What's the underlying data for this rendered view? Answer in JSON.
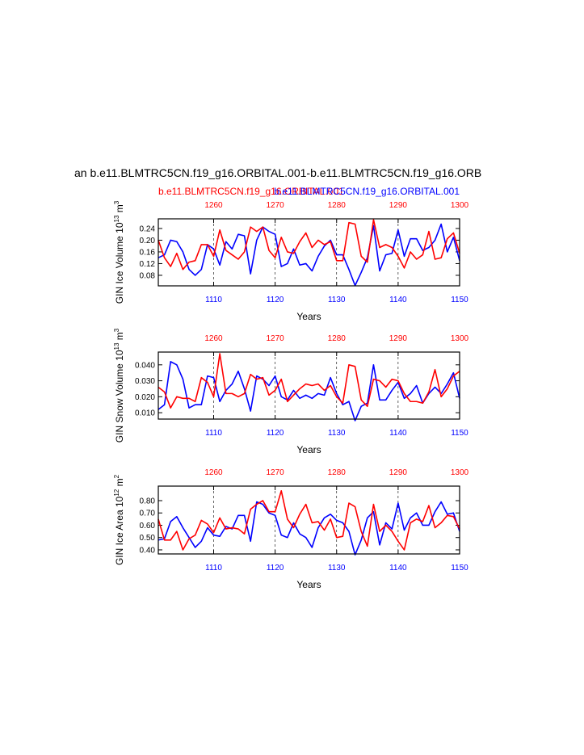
{
  "chart_data": [
    {
      "type": "line",
      "title": "an b.e11.BLMTRC5CN.f19_g16.ORBITAL.001-b.e11.BLMTRC5CN.f19_g16.ORB",
      "subtitle_left": "b.e11.BLMTRC5CN.f19_g16.ORBITAL.001",
      "subtitle_right": "b.e11.BLMTRC5CN.f19_g16.ORBITAL.001",
      "subtitle_left_color": "#ff0000",
      "subtitle_right_color": "#0000ff",
      "ylabel": [
        "GIN Ice Volume 10",
        "13",
        " m",
        "3"
      ],
      "xlabel": "Years",
      "xlim": [
        1101,
        1150
      ],
      "xticks": [
        1110,
        1120,
        1130,
        1140,
        1150
      ],
      "x2lim": [
        1251,
        1300
      ],
      "x2ticks": [
        1260,
        1270,
        1280,
        1290,
        1300
      ],
      "ylim": [
        0.044,
        0.273
      ],
      "yticks": [
        {
          "value": 0.08,
          "label": "0.08"
        },
        {
          "value": 0.12,
          "label": "0.12"
        },
        {
          "value": 0.16,
          "label": "0.16"
        },
        {
          "value": 0.2,
          "label": "0.20"
        },
        {
          "value": 0.24,
          "label": "0.24"
        }
      ],
      "grid": "x-dashed",
      "series": [
        {
          "color": "#0000ff",
          "xaxis": "bottom",
          "x": [
            1101,
            1102,
            1103,
            1104,
            1105,
            1106,
            1107,
            1108,
            1109,
            1110,
            1111,
            1112,
            1113,
            1114,
            1115,
            1116,
            1117,
            1118,
            1119,
            1120,
            1121,
            1122,
            1123,
            1124,
            1125,
            1126,
            1127,
            1128,
            1129,
            1130,
            1131,
            1132,
            1133,
            1134,
            1135,
            1136,
            1137,
            1138,
            1139,
            1140,
            1141,
            1142,
            1143,
            1144,
            1145,
            1146,
            1147,
            1148,
            1149,
            1150
          ],
          "values": [
            0.14,
            0.15,
            0.2,
            0.195,
            0.16,
            0.1,
            0.08,
            0.1,
            0.185,
            0.17,
            0.115,
            0.195,
            0.17,
            0.22,
            0.215,
            0.085,
            0.2,
            0.245,
            0.23,
            0.22,
            0.11,
            0.12,
            0.17,
            0.115,
            0.12,
            0.095,
            0.145,
            0.18,
            0.2,
            0.15,
            0.15,
            0.1,
            0.045,
            0.09,
            0.14,
            0.25,
            0.095,
            0.15,
            0.155,
            0.235,
            0.145,
            0.205,
            0.205,
            0.165,
            0.175,
            0.2,
            0.255,
            0.16,
            0.21,
            0.13
          ]
        },
        {
          "color": "#ff0000",
          "xaxis": "top",
          "x": [
            1251,
            1252,
            1253,
            1254,
            1255,
            1256,
            1257,
            1258,
            1259,
            1260,
            1261,
            1262,
            1263,
            1264,
            1265,
            1266,
            1267,
            1268,
            1269,
            1270,
            1271,
            1272,
            1273,
            1274,
            1275,
            1276,
            1277,
            1278,
            1279,
            1280,
            1281,
            1282,
            1283,
            1284,
            1285,
            1286,
            1287,
            1288,
            1289,
            1290,
            1291,
            1292,
            1293,
            1294,
            1295,
            1296,
            1297,
            1298,
            1299,
            1300
          ],
          "values": [
            0.2,
            0.14,
            0.11,
            0.155,
            0.1,
            0.125,
            0.13,
            0.185,
            0.185,
            0.145,
            0.235,
            0.165,
            0.15,
            0.135,
            0.16,
            0.245,
            0.23,
            0.245,
            0.165,
            0.14,
            0.21,
            0.16,
            0.155,
            0.195,
            0.225,
            0.175,
            0.2,
            0.185,
            0.195,
            0.13,
            0.13,
            0.26,
            0.255,
            0.145,
            0.125,
            0.27,
            0.175,
            0.185,
            0.175,
            0.145,
            0.105,
            0.16,
            0.135,
            0.15,
            0.23,
            0.135,
            0.14,
            0.205,
            0.225,
            0.155
          ]
        }
      ]
    },
    {
      "type": "line",
      "ylabel": [
        "GIN Snow Volume 10",
        "13",
        " m",
        "3"
      ],
      "xlabel": "Years",
      "xlim": [
        1101,
        1150
      ],
      "xticks": [
        1110,
        1120,
        1130,
        1140,
        1150
      ],
      "x2lim": [
        1251,
        1300
      ],
      "x2ticks": [
        1260,
        1270,
        1280,
        1290,
        1300
      ],
      "ylim": [
        0.006,
        0.048
      ],
      "yticks": [
        {
          "value": 0.01,
          "label": "0.010"
        },
        {
          "value": 0.02,
          "label": "0.020"
        },
        {
          "value": 0.03,
          "label": "0.030"
        },
        {
          "value": 0.04,
          "label": "0.040"
        }
      ],
      "grid": "x-dashed",
      "series": [
        {
          "color": "#0000ff",
          "xaxis": "bottom",
          "x": [
            1101,
            1102,
            1103,
            1104,
            1105,
            1106,
            1107,
            1108,
            1109,
            1110,
            1111,
            1112,
            1113,
            1114,
            1115,
            1116,
            1117,
            1118,
            1119,
            1120,
            1121,
            1122,
            1123,
            1124,
            1125,
            1126,
            1127,
            1128,
            1129,
            1130,
            1131,
            1132,
            1133,
            1134,
            1135,
            1136,
            1137,
            1138,
            1139,
            1140,
            1141,
            1142,
            1143,
            1144,
            1145,
            1146,
            1147,
            1148,
            1149,
            1150
          ],
          "values": [
            0.012,
            0.015,
            0.042,
            0.04,
            0.031,
            0.013,
            0.015,
            0.015,
            0.033,
            0.032,
            0.017,
            0.024,
            0.028,
            0.036,
            0.025,
            0.011,
            0.033,
            0.031,
            0.027,
            0.033,
            0.02,
            0.018,
            0.024,
            0.019,
            0.021,
            0.019,
            0.022,
            0.021,
            0.032,
            0.022,
            0.015,
            0.017,
            0.005,
            0.014,
            0.016,
            0.04,
            0.018,
            0.018,
            0.024,
            0.029,
            0.019,
            0.022,
            0.027,
            0.016,
            0.022,
            0.026,
            0.022,
            0.028,
            0.035,
            0.019
          ]
        },
        {
          "color": "#ff0000",
          "xaxis": "top",
          "x": [
            1251,
            1252,
            1253,
            1254,
            1255,
            1256,
            1257,
            1258,
            1259,
            1260,
            1261,
            1262,
            1263,
            1264,
            1265,
            1266,
            1267,
            1268,
            1269,
            1270,
            1271,
            1272,
            1273,
            1274,
            1275,
            1276,
            1277,
            1278,
            1279,
            1280,
            1281,
            1282,
            1283,
            1284,
            1285,
            1286,
            1287,
            1288,
            1289,
            1290,
            1291,
            1292,
            1293,
            1294,
            1295,
            1296,
            1297,
            1298,
            1299,
            1300
          ],
          "values": [
            0.026,
            0.023,
            0.013,
            0.02,
            0.019,
            0.019,
            0.017,
            0.032,
            0.029,
            0.02,
            0.047,
            0.022,
            0.022,
            0.02,
            0.022,
            0.034,
            0.031,
            0.032,
            0.021,
            0.024,
            0.031,
            0.017,
            0.021,
            0.025,
            0.028,
            0.027,
            0.028,
            0.024,
            0.027,
            0.02,
            0.016,
            0.04,
            0.039,
            0.018,
            0.014,
            0.031,
            0.03,
            0.026,
            0.031,
            0.03,
            0.022,
            0.017,
            0.017,
            0.016,
            0.023,
            0.037,
            0.02,
            0.025,
            0.033,
            0.036
          ]
        }
      ]
    },
    {
      "type": "line",
      "ylabel": [
        "GIN Ice Area 10",
        "12",
        " m",
        "2"
      ],
      "xlabel": "Years",
      "xlim": [
        1101,
        1150
      ],
      "xticks": [
        1110,
        1120,
        1130,
        1140,
        1150
      ],
      "x2lim": [
        1251,
        1300
      ],
      "x2ticks": [
        1260,
        1270,
        1280,
        1290,
        1300
      ],
      "ylim": [
        0.367,
        0.918
      ],
      "yticks": [
        {
          "value": 0.4,
          "label": "0.40"
        },
        {
          "value": 0.5,
          "label": "0.50"
        },
        {
          "value": 0.6,
          "label": "0.60"
        },
        {
          "value": 0.7,
          "label": "0.70"
        },
        {
          "value": 0.8,
          "label": "0.80"
        }
      ],
      "grid": "x-dashed",
      "series": [
        {
          "color": "#0000ff",
          "xaxis": "bottom",
          "x": [
            1101,
            1102,
            1103,
            1104,
            1105,
            1106,
            1107,
            1108,
            1109,
            1110,
            1111,
            1112,
            1113,
            1114,
            1115,
            1116,
            1117,
            1118,
            1119,
            1120,
            1121,
            1122,
            1123,
            1124,
            1125,
            1126,
            1127,
            1128,
            1129,
            1130,
            1131,
            1132,
            1133,
            1134,
            1135,
            1136,
            1137,
            1138,
            1139,
            1140,
            1141,
            1142,
            1143,
            1144,
            1145,
            1146,
            1147,
            1148,
            1149,
            1150
          ],
          "values": [
            0.48,
            0.49,
            0.63,
            0.67,
            0.58,
            0.5,
            0.42,
            0.47,
            0.58,
            0.52,
            0.51,
            0.59,
            0.57,
            0.68,
            0.68,
            0.47,
            0.79,
            0.77,
            0.7,
            0.68,
            0.52,
            0.5,
            0.62,
            0.53,
            0.5,
            0.42,
            0.58,
            0.66,
            0.69,
            0.64,
            0.62,
            0.55,
            0.36,
            0.48,
            0.66,
            0.71,
            0.44,
            0.62,
            0.57,
            0.78,
            0.56,
            0.66,
            0.7,
            0.6,
            0.6,
            0.71,
            0.79,
            0.69,
            0.7,
            0.55
          ]
        },
        {
          "color": "#ff0000",
          "xaxis": "top",
          "x": [
            1251,
            1252,
            1253,
            1254,
            1255,
            1256,
            1257,
            1258,
            1259,
            1260,
            1261,
            1262,
            1263,
            1264,
            1265,
            1266,
            1267,
            1268,
            1269,
            1270,
            1271,
            1272,
            1273,
            1274,
            1275,
            1276,
            1277,
            1278,
            1279,
            1280,
            1281,
            1282,
            1283,
            1284,
            1285,
            1286,
            1287,
            1288,
            1289,
            1290,
            1291,
            1292,
            1293,
            1294,
            1295,
            1296,
            1297,
            1298,
            1299,
            1300
          ],
          "values": [
            0.65,
            0.48,
            0.48,
            0.55,
            0.4,
            0.49,
            0.52,
            0.64,
            0.61,
            0.54,
            0.66,
            0.57,
            0.58,
            0.57,
            0.53,
            0.73,
            0.77,
            0.8,
            0.71,
            0.71,
            0.88,
            0.65,
            0.58,
            0.69,
            0.77,
            0.62,
            0.63,
            0.56,
            0.65,
            0.5,
            0.51,
            0.78,
            0.75,
            0.55,
            0.43,
            0.77,
            0.55,
            0.6,
            0.55,
            0.47,
            0.4,
            0.62,
            0.65,
            0.63,
            0.76,
            0.58,
            0.62,
            0.68,
            0.67,
            0.57
          ]
        }
      ]
    }
  ]
}
